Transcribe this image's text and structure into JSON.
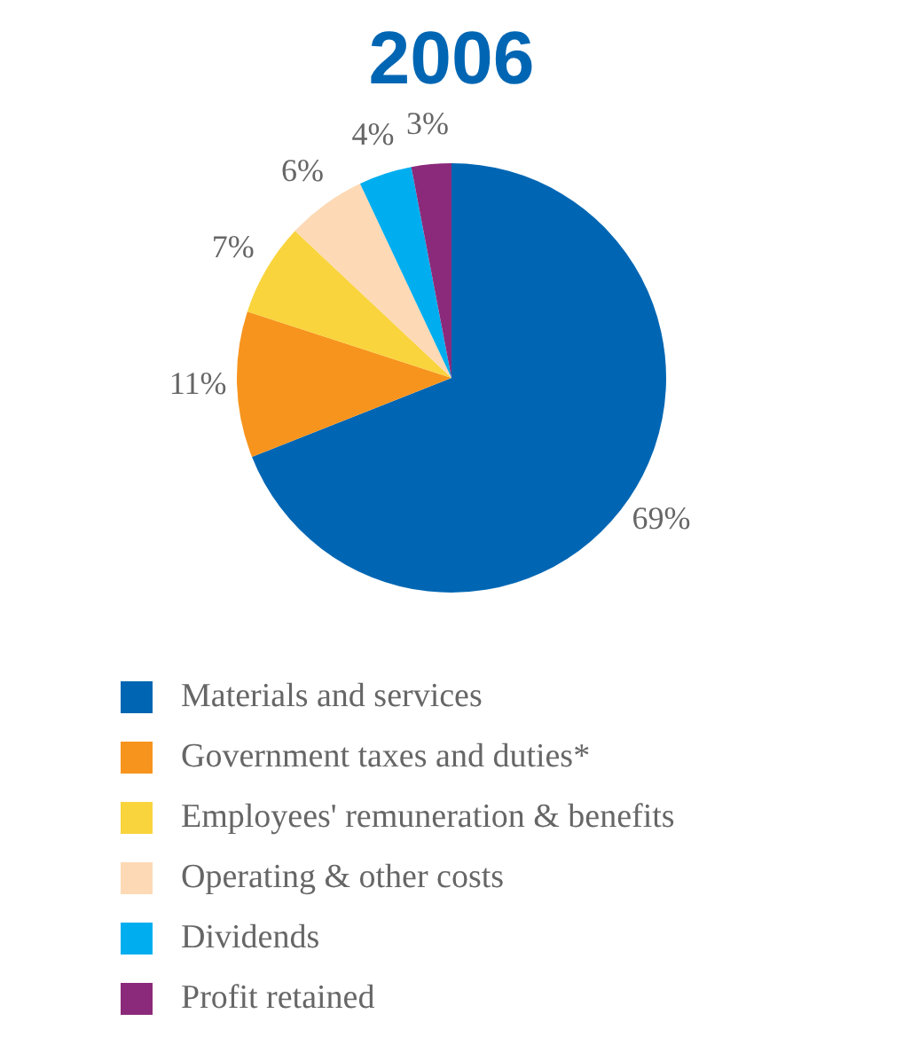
{
  "chart_data": {
    "type": "pie",
    "title": "2006",
    "categories": [
      "Materials and services",
      "Government taxes and duties*",
      "Employees' remuneration & benefits",
      "Operating & other costs",
      "Dividends",
      "Profit retained"
    ],
    "values": [
      69,
      11,
      7,
      6,
      4,
      3
    ],
    "value_labels": [
      "69%",
      "11%",
      "7%",
      "6%",
      "4%",
      "3%"
    ],
    "colors": [
      "#0066b3",
      "#f7941d",
      "#f9d43c",
      "#fdd9b5",
      "#00aeef",
      "#8b2a7a"
    ],
    "legend": "bottom"
  }
}
